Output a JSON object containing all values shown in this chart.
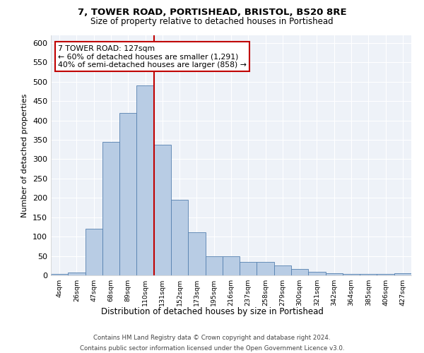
{
  "title": "7, TOWER ROAD, PORTISHEAD, BRISTOL, BS20 8RE",
  "subtitle": "Size of property relative to detached houses in Portishead",
  "xlabel": "Distribution of detached houses by size in Portishead",
  "ylabel": "Number of detached properties",
  "categories": [
    "4sqm",
    "26sqm",
    "47sqm",
    "68sqm",
    "89sqm",
    "110sqm",
    "131sqm",
    "152sqm",
    "173sqm",
    "195sqm",
    "216sqm",
    "237sqm",
    "258sqm",
    "279sqm",
    "300sqm",
    "321sqm",
    "342sqm",
    "364sqm",
    "385sqm",
    "406sqm",
    "427sqm"
  ],
  "values": [
    4,
    8,
    120,
    345,
    420,
    490,
    338,
    195,
    112,
    50,
    50,
    35,
    35,
    25,
    17,
    10,
    5,
    3,
    4,
    3,
    5
  ],
  "bar_color": "#b8cce4",
  "bar_edge_color": "#5580b0",
  "vline_color": "#c00000",
  "annotation_text": "7 TOWER ROAD: 127sqm\n← 60% of detached houses are smaller (1,291)\n40% of semi-detached houses are larger (858) →",
  "annotation_box_color": "#ffffff",
  "annotation_box_edge": "#c00000",
  "footer1": "Contains HM Land Registry data © Crown copyright and database right 2024.",
  "footer2": "Contains public sector information licensed under the Open Government Licence v3.0.",
  "bg_color": "#eef2f8",
  "grid_color": "#ffffff",
  "ylim": [
    0,
    620
  ],
  "yticks": [
    0,
    50,
    100,
    150,
    200,
    250,
    300,
    350,
    400,
    450,
    500,
    550,
    600
  ]
}
